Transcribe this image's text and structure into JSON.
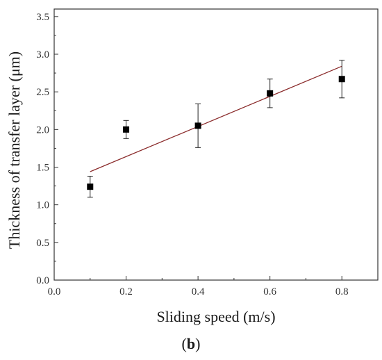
{
  "chart_data": {
    "type": "scatter",
    "xlabel": "Sliding speed (m/s)",
    "ylabel": "Thickness of transfer layer (μm)",
    "xlim": [
      0.0,
      0.9
    ],
    "ylim": [
      0.0,
      3.6
    ],
    "x_ticks": [
      "0.0",
      "0.2",
      "0.4",
      "0.6",
      "0.8"
    ],
    "y_ticks": [
      "0.0",
      "0.5",
      "1.0",
      "1.5",
      "2.0",
      "2.5",
      "3.0",
      "3.5"
    ],
    "grid": false,
    "series": [
      {
        "marker": "square",
        "color": "#000000",
        "x": [
          0.1,
          0.2,
          0.4,
          0.6,
          0.8
        ],
        "y": [
          1.24,
          2.0,
          2.05,
          2.48,
          2.67
        ],
        "error": [
          0.14,
          0.12,
          0.29,
          0.19,
          0.25
        ]
      }
    ],
    "fit_line": {
      "color": "#8b2c2c",
      "x": [
        0.1,
        0.8
      ],
      "y": [
        1.44,
        2.84
      ]
    }
  },
  "panel_label": {
    "open": "(",
    "letter": "b",
    "close": ")"
  }
}
